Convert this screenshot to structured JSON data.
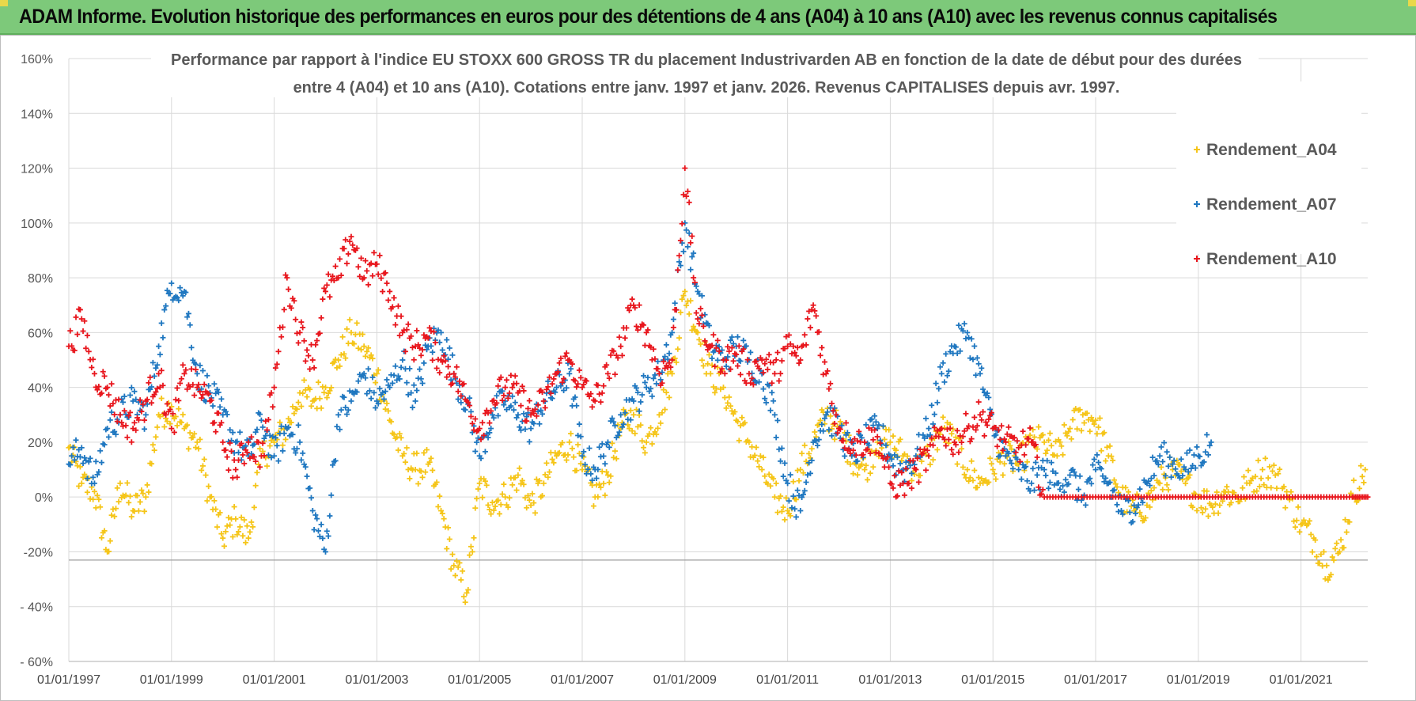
{
  "header": {
    "title": "ADAM Informe. Evolution historique des performances en euros pour des détentions de 4 ans (A04) à 10 ans (A10) avec les revenus connus capitalisés"
  },
  "chart_data": {
    "type": "scatter",
    "title": [
      "Performance par rapport à l'indice EU STOXX 600 GROSS TR  du placement Industrivarden AB en fonction de la date de début pour des durées",
      "entre 4 (A04) et 10 ans (A10).  Cotations entre janv. 1997 et janv. 2026. Revenus CAPITALISES  depuis avr. 1997."
    ],
    "xlabel": "",
    "ylabel": "",
    "ylim": [
      -60,
      160
    ],
    "xlim": [
      1997.0,
      2022.3
    ],
    "yticks": [
      -60,
      -40,
      -20,
      0,
      20,
      40,
      60,
      80,
      100,
      120,
      140,
      160
    ],
    "ytick_labels": [
      "- 60%",
      "- 40%",
      "-20%",
      "0%",
      "20%",
      "40%",
      "60%",
      "80%",
      "100%",
      "120%",
      "140%",
      "160%"
    ],
    "xticks": [
      1997,
      1999,
      2001,
      2003,
      2005,
      2007,
      2009,
      2011,
      2013,
      2015,
      2017,
      2019,
      2021
    ],
    "xtick_labels": [
      "01/01/1997",
      "01/01/1999",
      "01/01/2001",
      "01/01/2003",
      "01/01/2005",
      "01/01/2007",
      "01/01/2009",
      "01/01/2011",
      "01/01/2013",
      "01/01/2015",
      "01/01/2017",
      "01/01/2019",
      "01/01/2021"
    ],
    "grid": true,
    "legend_position": "top-right",
    "series": [
      {
        "name": "Rendement_A04",
        "color": "#f5c518",
        "x": [
          1997.0,
          1997.25,
          1997.5,
          1997.75,
          1998.0,
          1998.25,
          1998.5,
          1998.75,
          1999.0,
          1999.25,
          1999.5,
          1999.75,
          2000.0,
          2000.25,
          2000.5,
          2000.75,
          2001.0,
          2001.25,
          2001.5,
          2001.75,
          2002.0,
          2002.25,
          2002.5,
          2002.75,
          2003.0,
          2003.25,
          2003.5,
          2003.75,
          2004.0,
          2004.25,
          2004.5,
          2004.75,
          2005.0,
          2005.25,
          2005.5,
          2005.75,
          2006.0,
          2006.25,
          2006.5,
          2006.75,
          2007.0,
          2007.25,
          2007.5,
          2007.75,
          2008.0,
          2008.25,
          2008.5,
          2008.75,
          2009.0,
          2009.25,
          2009.5,
          2009.75,
          2010.0,
          2010.25,
          2010.5,
          2010.75,
          2011.0,
          2011.25,
          2011.5,
          2011.75,
          2012.0,
          2012.25,
          2012.5,
          2012.75,
          2013.0,
          2013.25,
          2013.5,
          2013.75,
          2014.0,
          2014.25,
          2014.5,
          2014.75,
          2015.0,
          2015.25,
          2015.5,
          2015.75,
          2016.0,
          2016.25,
          2016.5,
          2016.75,
          2017.0,
          2017.25,
          2017.5,
          2017.75,
          2018.0,
          2018.25,
          2018.5,
          2018.75,
          2019.0,
          2019.25,
          2019.5,
          2019.75,
          2020.0,
          2020.25,
          2020.5,
          2020.75,
          2021.0,
          2021.25,
          2021.5,
          2021.75,
          2022.0,
          2022.25
        ],
        "y": [
          18,
          5,
          2,
          -20,
          5,
          -5,
          0,
          30,
          33,
          25,
          20,
          0,
          -15,
          -8,
          -15,
          15,
          20,
          25,
          38,
          35,
          40,
          50,
          60,
          55,
          45,
          28,
          15,
          10,
          12,
          -5,
          -25,
          -35,
          5,
          -2,
          0,
          8,
          -3,
          5,
          15,
          20,
          10,
          0,
          8,
          25,
          30,
          20,
          30,
          45,
          75,
          60,
          45,
          40,
          28,
          20,
          10,
          0,
          -5,
          10,
          20,
          30,
          25,
          15,
          10,
          20,
          20,
          15,
          10,
          15,
          25,
          20,
          10,
          5,
          10,
          15,
          12,
          20,
          20,
          15,
          25,
          30,
          28,
          15,
          0,
          -5,
          -3,
          5,
          10,
          5,
          0,
          -3,
          2,
          0,
          5,
          10,
          8,
          0,
          -10,
          -15,
          -25,
          -20,
          0,
          10
        ]
      },
      {
        "name": "Rendement_A07",
        "color": "#1f77c0",
        "x": [
          1997.0,
          1997.25,
          1997.5,
          1997.75,
          1998.0,
          1998.25,
          1998.5,
          1998.75,
          1999.0,
          1999.25,
          1999.5,
          1999.75,
          2000.0,
          2000.25,
          2000.5,
          2000.75,
          2001.0,
          2001.25,
          2001.5,
          2001.75,
          2002.0,
          2002.25,
          2002.5,
          2002.75,
          2003.0,
          2003.25,
          2003.5,
          2003.75,
          2004.0,
          2004.25,
          2004.5,
          2004.75,
          2005.0,
          2005.25,
          2005.5,
          2005.75,
          2006.0,
          2006.25,
          2006.5,
          2006.75,
          2007.0,
          2007.25,
          2007.5,
          2007.75,
          2008.0,
          2008.25,
          2008.5,
          2008.75,
          2009.0,
          2009.25,
          2009.5,
          2009.75,
          2010.0,
          2010.25,
          2010.5,
          2010.75,
          2011.0,
          2011.25,
          2011.5,
          2011.75,
          2012.0,
          2012.25,
          2012.5,
          2012.75,
          2013.0,
          2013.25,
          2013.5,
          2013.75,
          2014.0,
          2014.25,
          2014.5,
          2014.75,
          2015.0,
          2015.25,
          2015.5,
          2015.75,
          2016.0,
          2016.25,
          2016.5,
          2016.75,
          2017.0,
          2017.25,
          2017.5,
          2017.75,
          2018.0,
          2018.25,
          2018.5,
          2018.75,
          2019.0,
          2019.25
        ],
        "y": [
          12,
          18,
          5,
          25,
          30,
          35,
          30,
          55,
          78,
          75,
          45,
          38,
          30,
          20,
          15,
          28,
          15,
          25,
          20,
          -5,
          -20,
          30,
          35,
          45,
          35,
          40,
          50,
          35,
          55,
          60,
          45,
          35,
          15,
          30,
          35,
          30,
          25,
          35,
          40,
          45,
          15,
          10,
          20,
          30,
          35,
          40,
          45,
          60,
          100,
          75,
          55,
          50,
          55,
          50,
          45,
          30,
          5,
          -5,
          20,
          30,
          25,
          15,
          20,
          25,
          15,
          10,
          15,
          25,
          45,
          55,
          60,
          45,
          25,
          15,
          10,
          5,
          10,
          5,
          8,
          0,
          10,
          5,
          -5,
          -3,
          5,
          15,
          12,
          10,
          15,
          20
        ]
      },
      {
        "name": "Rendement_A10",
        "color": "#e8161d",
        "x": [
          1997.0,
          1997.25,
          1997.5,
          1997.75,
          1998.0,
          1998.25,
          1998.5,
          1998.75,
          1999.0,
          1999.25,
          1999.5,
          1999.75,
          2000.0,
          2000.25,
          2000.5,
          2000.75,
          2001.0,
          2001.25,
          2001.5,
          2001.75,
          2002.0,
          2002.25,
          2002.5,
          2002.75,
          2003.0,
          2003.25,
          2003.5,
          2003.75,
          2004.0,
          2004.25,
          2004.5,
          2004.75,
          2005.0,
          2005.25,
          2005.5,
          2005.75,
          2006.0,
          2006.25,
          2006.5,
          2006.75,
          2007.0,
          2007.25,
          2007.5,
          2007.75,
          2008.0,
          2008.25,
          2008.5,
          2008.75,
          2009.0,
          2009.25,
          2009.5,
          2009.75,
          2010.0,
          2010.25,
          2010.5,
          2010.75,
          2011.0,
          2011.25,
          2011.5,
          2011.75,
          2012.0,
          2012.25,
          2012.5,
          2012.75,
          2013.0,
          2013.25,
          2013.5,
          2013.75,
          2014.0,
          2014.25,
          2014.5,
          2014.75,
          2015.0,
          2015.25,
          2015.5,
          2015.75,
          2016.0,
          2016.5,
          2017.0,
          2017.5,
          2018.0,
          2018.5,
          2019.0,
          2019.5,
          2020.0,
          2020.5,
          2021.0,
          2021.5,
          2022.0,
          2022.3
        ],
        "y": [
          55,
          65,
          45,
          40,
          30,
          25,
          35,
          45,
          25,
          45,
          40,
          35,
          20,
          10,
          20,
          15,
          40,
          80,
          60,
          50,
          75,
          80,
          95,
          80,
          85,
          75,
          60,
          55,
          58,
          50,
          45,
          35,
          25,
          35,
          40,
          38,
          30,
          35,
          45,
          50,
          40,
          35,
          45,
          55,
          70,
          60,
          45,
          50,
          120,
          65,
          55,
          50,
          52,
          45,
          50,
          45,
          55,
          50,
          70,
          45,
          25,
          20,
          20,
          22,
          5,
          5,
          10,
          15,
          25,
          20,
          25,
          30,
          25,
          20,
          18,
          20,
          0,
          0,
          0,
          0,
          0,
          0,
          0,
          0,
          0,
          0,
          0,
          0,
          0,
          0
        ]
      }
    ]
  }
}
